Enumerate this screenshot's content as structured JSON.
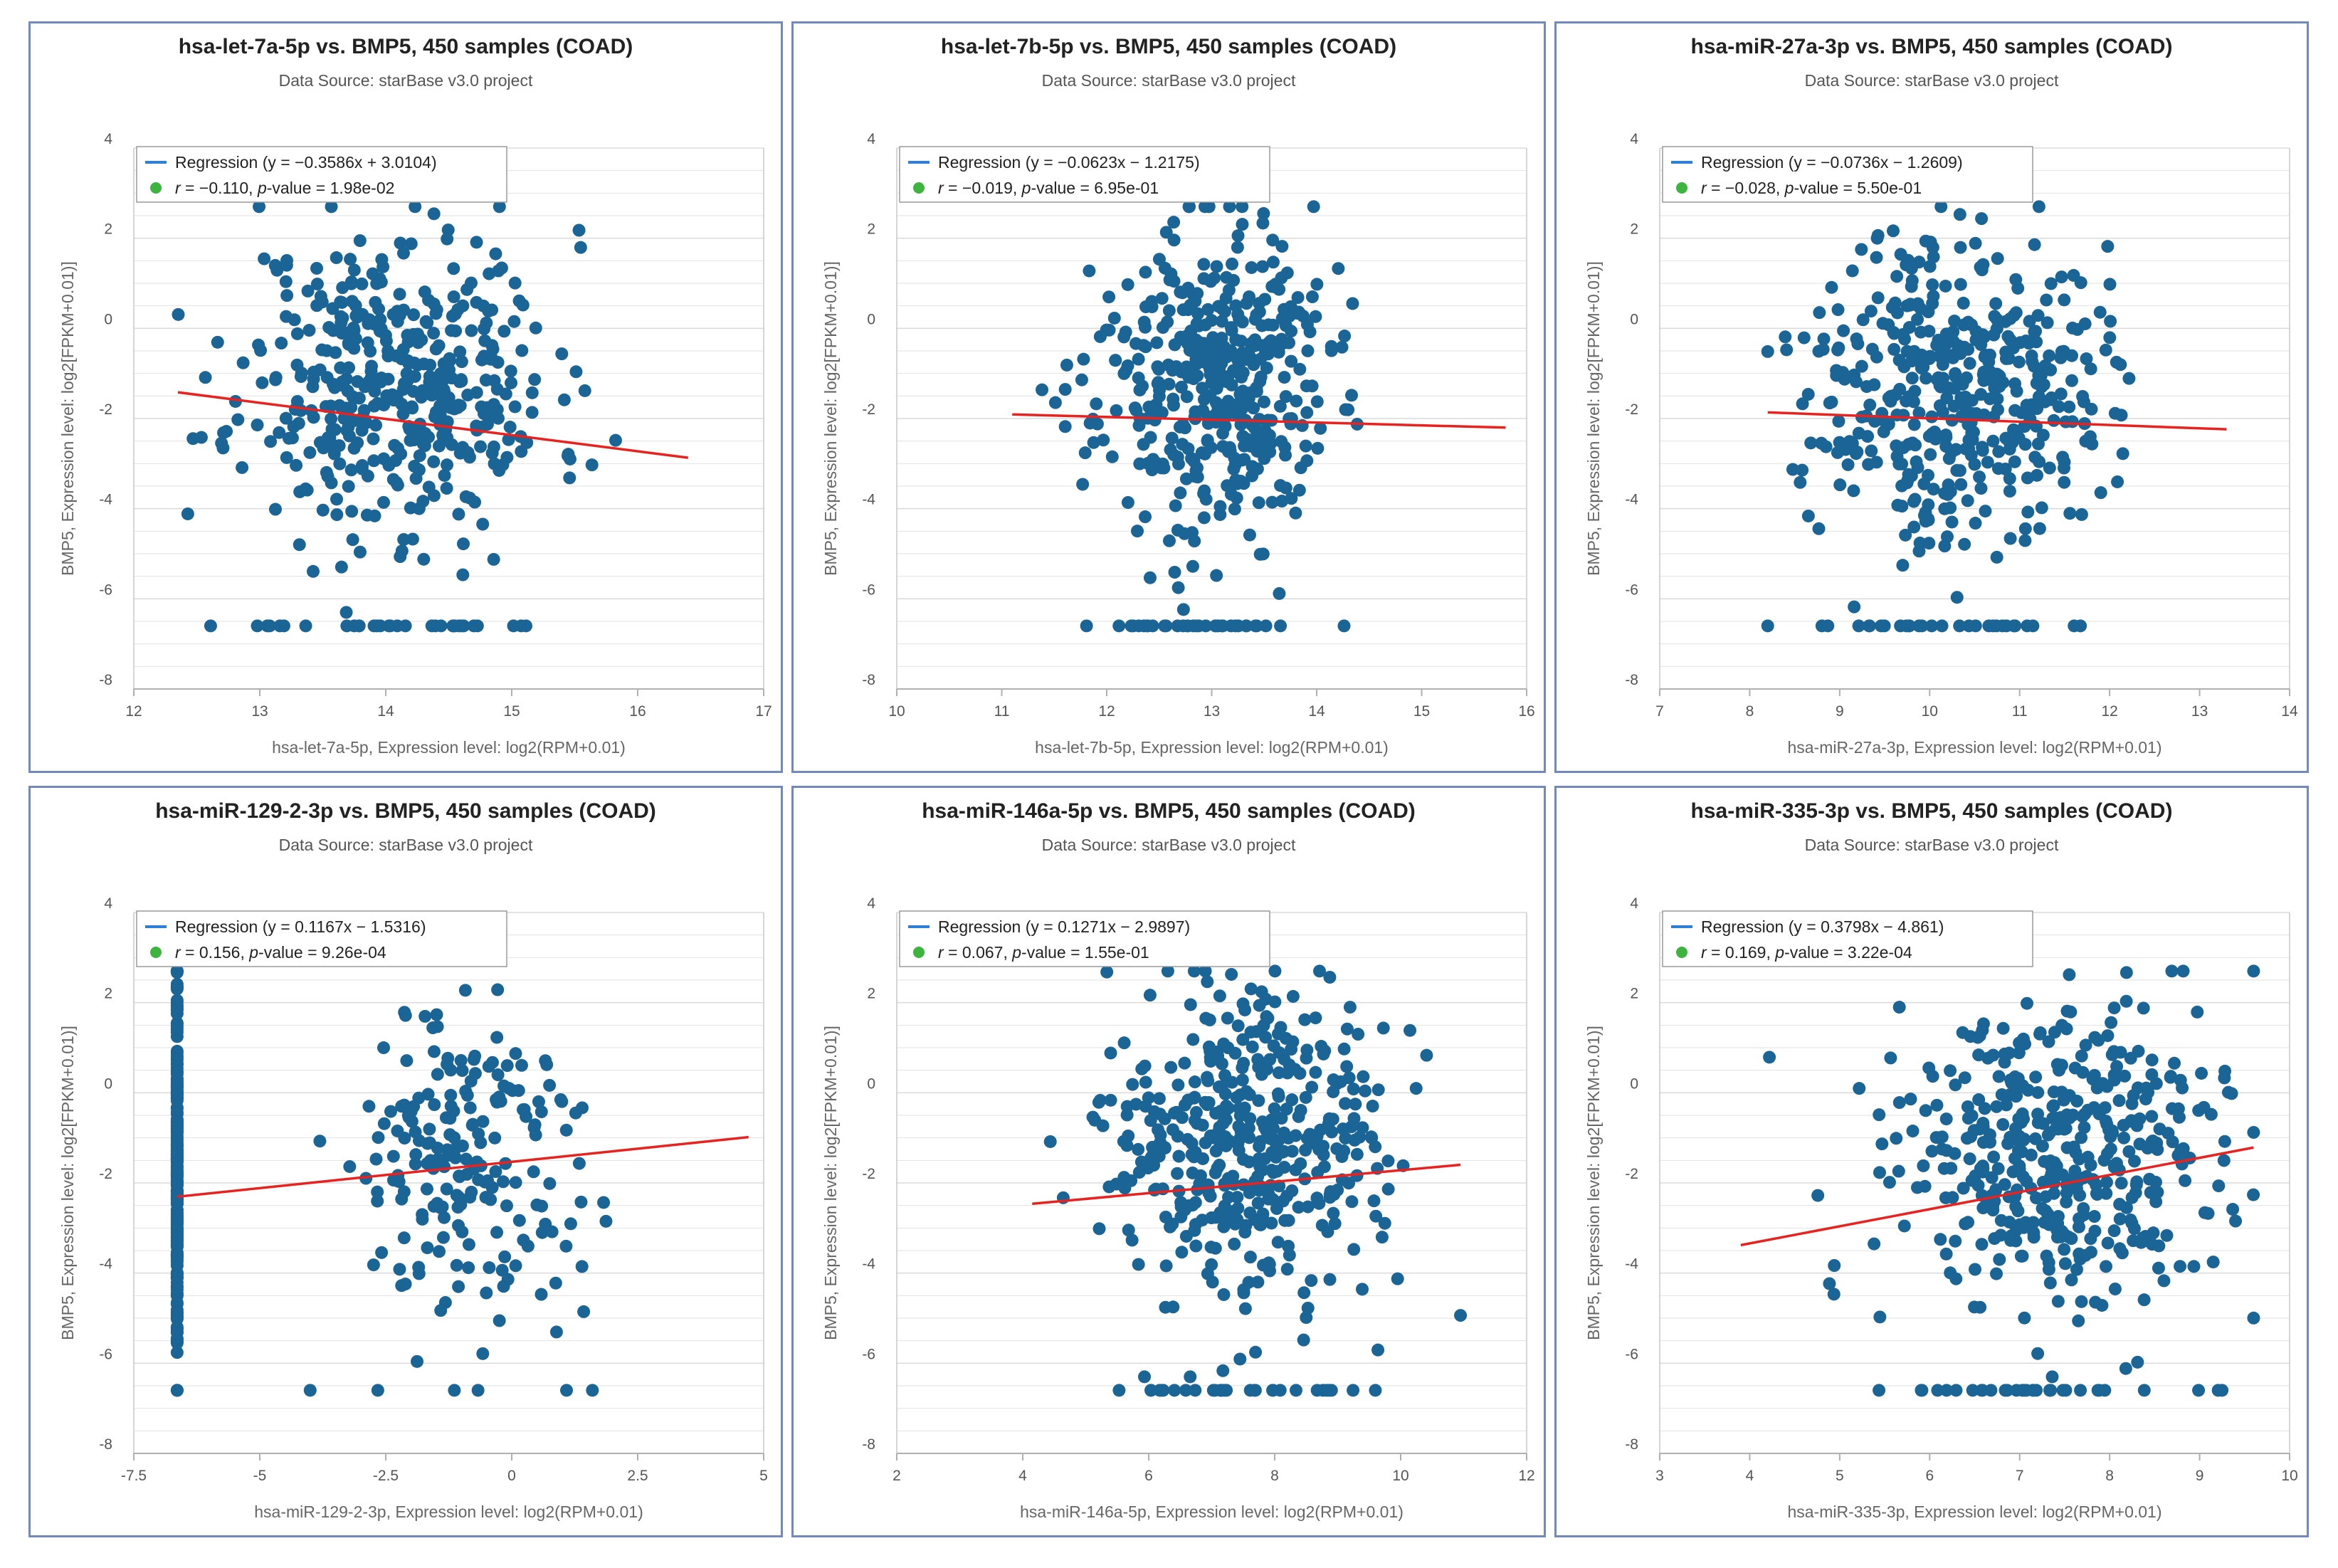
{
  "colors": {
    "point": "#1a6496",
    "regression": "#e8231f",
    "legend_line": "#2f7ed8",
    "legend_dot": "#3db43d",
    "grid": "#dcdcdc",
    "panel_border": "#7289bd"
  },
  "chart_data": [
    {
      "type": "scatter",
      "title": "hsa-let-7a-5p vs. BMP5, 450 samples (COAD)",
      "subtitle": "Data Source: starBase v3.0 project",
      "xlabel": "hsa-let-7a-5p, Expression level: log2(RPM+0.01)",
      "ylabel": "BMP5, Expression level: log2[FPKM+0.01)]",
      "xlim": [
        12,
        17
      ],
      "ylim": [
        -8,
        4
      ],
      "xticks": [
        12,
        13,
        14,
        15,
        16,
        17
      ],
      "xtick_labels": [
        "12",
        "13",
        "14",
        "15",
        "16",
        "17"
      ],
      "yticks": [
        -8,
        -6,
        -4,
        -2,
        0,
        2,
        4
      ],
      "ytick_labels": [
        "-8",
        "-6",
        "-4",
        "-2",
        "0",
        "2",
        "4"
      ],
      "legend_regression_prefix": "Regression (y = ",
      "regression_eq": "−0.3586x + 3.0104",
      "legend_regression_suffix": ")",
      "r_label": "r",
      "r_value": " = −0.110, ",
      "p_label": "p",
      "p_value": "-value = 1.98e-02",
      "slope": -0.3586,
      "intercept": 3.0104,
      "x_range": [
        12.35,
        16.4
      ],
      "gen": {
        "xmean": 14.1,
        "xsd": 0.62,
        "xmin": 12.35,
        "xmax": 16.4,
        "ymean": -1.2,
        "ysd": 1.7,
        "floor": -6.6,
        "floor_n": 32,
        "n": 440,
        "seed": 11,
        "discrete_x": null,
        "discrete_n": 0
      }
    },
    {
      "type": "scatter",
      "title": "hsa-let-7b-5p vs. BMP5, 450 samples (COAD)",
      "subtitle": "Data Source: starBase v3.0 project",
      "xlabel": "hsa-let-7b-5p, Expression level: log2(RPM+0.01)",
      "ylabel": "BMP5, Expression level: log2[FPKM+0.01)]",
      "xlim": [
        10,
        16
      ],
      "ylim": [
        -8,
        4
      ],
      "xticks": [
        10,
        11,
        12,
        13,
        14,
        15,
        16
      ],
      "xtick_labels": [
        "10",
        "11",
        "12",
        "13",
        "14",
        "15",
        "16"
      ],
      "yticks": [
        -8,
        -6,
        -4,
        -2,
        0,
        2,
        4
      ],
      "ytick_labels": [
        "-8",
        "-6",
        "-4",
        "-2",
        "0",
        "2",
        "4"
      ],
      "legend_regression_prefix": "Regression (y = ",
      "regression_eq": "−0.0623x − 1.2175",
      "legend_regression_suffix": ")",
      "r_label": "r",
      "r_value": " = −0.019, ",
      "p_label": "p",
      "p_value": "-value = 6.95e-01",
      "slope": -0.0623,
      "intercept": -1.2175,
      "x_range": [
        11.1,
        15.8
      ],
      "gen": {
        "xmean": 13.0,
        "xsd": 0.55,
        "xmin": 11.1,
        "xmax": 15.8,
        "ymean": -1.2,
        "ysd": 1.7,
        "floor": -6.6,
        "floor_n": 34,
        "n": 440,
        "seed": 23,
        "discrete_x": null,
        "discrete_n": 0
      }
    },
    {
      "type": "scatter",
      "title": "hsa-miR-27a-3p vs. BMP5, 450 samples (COAD)",
      "subtitle": "Data Source: starBase v3.0 project",
      "xlabel": "hsa-miR-27a-3p, Expression level: log2(RPM+0.01)",
      "ylabel": "BMP5, Expression level: log2[FPKM+0.01)]",
      "xlim": [
        7,
        14
      ],
      "ylim": [
        -8,
        4
      ],
      "xticks": [
        7,
        8,
        9,
        10,
        11,
        12,
        13,
        14
      ],
      "xtick_labels": [
        "7",
        "8",
        "9",
        "10",
        "11",
        "12",
        "13",
        "14"
      ],
      "yticks": [
        -8,
        -6,
        -4,
        -2,
        0,
        2,
        4
      ],
      "ytick_labels": [
        "-8",
        "-6",
        "-4",
        "-2",
        "0",
        "2",
        "4"
      ],
      "legend_regression_prefix": "Regression (y = ",
      "regression_eq": "−0.0736x − 1.2609",
      "legend_regression_suffix": ")",
      "r_label": "r",
      "r_value": " = −0.028, ",
      "p_label": "p",
      "p_value": "-value = 5.50e-01",
      "slope": -0.0736,
      "intercept": -1.2609,
      "x_range": [
        8.2,
        13.3
      ],
      "gen": {
        "xmean": 10.3,
        "xsd": 0.8,
        "xmin": 8.2,
        "xmax": 13.3,
        "ymean": -1.2,
        "ysd": 1.7,
        "floor": -6.6,
        "floor_n": 30,
        "n": 440,
        "seed": 37,
        "discrete_x": null,
        "discrete_n": 0
      }
    },
    {
      "type": "scatter",
      "title": "hsa-miR-129-2-3p vs. BMP5, 450 samples (COAD)",
      "subtitle": "Data Source: starBase v3.0 project",
      "xlabel": "hsa-miR-129-2-3p, Expression level: log2(RPM+0.01)",
      "ylabel": "BMP5, Expression level: log2[FPKM+0.01)]",
      "xlim": [
        -7.5,
        5
      ],
      "ylim": [
        -8,
        4
      ],
      "xticks": [
        -7.5,
        -5,
        -2.5,
        0,
        2.5,
        5
      ],
      "xtick_labels": [
        "-7.5",
        "-5",
        "-2.5",
        "0",
        "2.5",
        "5"
      ],
      "yticks": [
        -8,
        -6,
        -4,
        -2,
        0,
        2,
        4
      ],
      "ytick_labels": [
        "-8",
        "-6",
        "-4",
        "-2",
        "0",
        "2",
        "4"
      ],
      "legend_regression_prefix": "Regression (y = ",
      "regression_eq": "0.1167x − 1.5316",
      "legend_regression_suffix": ")",
      "r_label": "r",
      "r_value": " = 0.156, ",
      "p_label": "p",
      "p_value": "-value = 9.26e-04",
      "slope": 0.1167,
      "intercept": -1.5316,
      "x_range": [
        -6.64,
        4.7
      ],
      "gen": {
        "xmean": -0.9,
        "xsd": 1.15,
        "xmin": -4.0,
        "xmax": 4.7,
        "ymean": -1.6,
        "ysd": 1.8,
        "floor": -6.6,
        "floor_n": 6,
        "n": 200,
        "seed": 51,
        "discrete_x": -6.64,
        "discrete_n": 240
      }
    },
    {
      "type": "scatter",
      "title": "hsa-miR-146a-5p vs. BMP5, 450 samples (COAD)",
      "subtitle": "Data Source: starBase v3.0 project",
      "xlabel": "hsa-miR-146a-5p, Expression level: log2(RPM+0.01)",
      "ylabel": "BMP5, Expression level: log2[FPKM+0.01)]",
      "xlim": [
        2,
        12
      ],
      "ylim": [
        -8,
        4
      ],
      "xticks": [
        2,
        4,
        6,
        8,
        10,
        12
      ],
      "xtick_labels": [
        "2",
        "4",
        "6",
        "8",
        "10",
        "12"
      ],
      "yticks": [
        -8,
        -6,
        -4,
        -2,
        0,
        2,
        4
      ],
      "ytick_labels": [
        "-8",
        "-6",
        "-4",
        "-2",
        "0",
        "2",
        "4"
      ],
      "legend_regression_prefix": "Regression (y = ",
      "regression_eq": "0.1271x − 2.9897",
      "legend_regression_suffix": ")",
      "r_label": "r",
      "r_value": " = 0.067, ",
      "p_label": "p",
      "p_value": "-value = 1.55e-01",
      "slope": 0.1271,
      "intercept": -2.9897,
      "x_range": [
        4.15,
        10.95
      ],
      "gen": {
        "xmean": 7.5,
        "xsd": 1.05,
        "xmin": 4.15,
        "xmax": 10.95,
        "ymean": -1.3,
        "ysd": 1.7,
        "floor": -6.6,
        "floor_n": 30,
        "n": 440,
        "seed": 67,
        "discrete_x": null,
        "discrete_n": 0
      }
    },
    {
      "type": "scatter",
      "title": "hsa-miR-335-3p vs. BMP5, 450 samples (COAD)",
      "subtitle": "Data Source: starBase v3.0 project",
      "xlabel": "hsa-miR-335-3p, Expression level: log2(RPM+0.01)",
      "ylabel": "BMP5, Expression level: log2[FPKM+0.01)]",
      "xlim": [
        3,
        10
      ],
      "ylim": [
        -8,
        4
      ],
      "xticks": [
        3,
        4,
        5,
        6,
        7,
        8,
        9,
        10
      ],
      "xtick_labels": [
        "3",
        "4",
        "5",
        "6",
        "7",
        "8",
        "9",
        "10"
      ],
      "yticks": [
        -8,
        -6,
        -4,
        -2,
        0,
        2,
        4
      ],
      "ytick_labels": [
        "-8",
        "-6",
        "-4",
        "-2",
        "0",
        "2",
        "4"
      ],
      "legend_regression_prefix": "Regression (y = ",
      "regression_eq": "0.3798x − 4.861",
      "legend_regression_suffix": ")",
      "r_label": "r",
      "r_value": " = 0.169, ",
      "p_label": "p",
      "p_value": "-value = 3.22e-04",
      "slope": 0.3798,
      "intercept": -4.861,
      "x_range": [
        3.9,
        9.6
      ],
      "gen": {
        "xmean": 7.4,
        "xsd": 0.95,
        "xmin": 3.9,
        "xmax": 9.6,
        "ymean": -1.4,
        "ysd": 1.7,
        "floor": -6.6,
        "floor_n": 32,
        "n": 440,
        "seed": 83,
        "discrete_x": null,
        "discrete_n": 0
      }
    }
  ]
}
